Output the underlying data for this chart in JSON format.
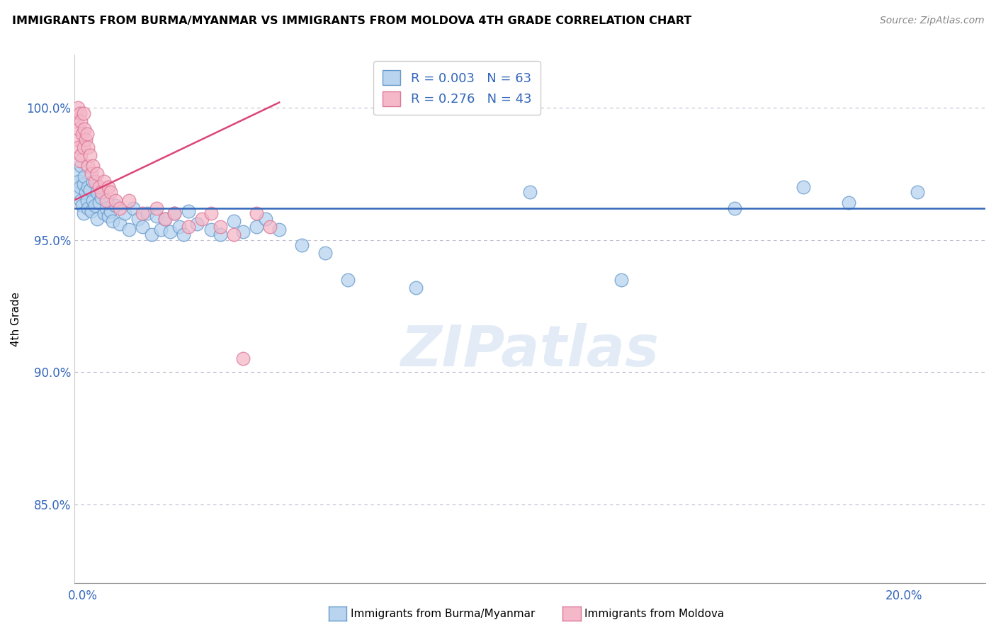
{
  "title": "IMMIGRANTS FROM BURMA/MYANMAR VS IMMIGRANTS FROM MOLDOVA 4TH GRADE CORRELATION CHART",
  "source": "Source: ZipAtlas.com",
  "ylabel": "4th Grade",
  "xlim": [
    0.0,
    20.0
  ],
  "ylim": [
    82.0,
    102.0
  ],
  "yticks": [
    85.0,
    90.0,
    95.0,
    100.0
  ],
  "ytick_labels": [
    "85.0%",
    "90.0%",
    "95.0%",
    "100.0%"
  ],
  "series_burma": {
    "label": "Immigrants from Burma/Myanmar",
    "color": "#b8d4ee",
    "edge_color": "#6699cc",
    "R": 0.003,
    "N": 63,
    "line_color": "#3366bb",
    "line_y": 96.2
  },
  "series_moldova": {
    "label": "Immigrants from Moldova",
    "color": "#f4b8c8",
    "edge_color": "#dd7799",
    "R": 0.276,
    "N": 43,
    "line_color": "#dd4477",
    "line_x0": 0.0,
    "line_y0": 96.5,
    "line_x1": 4.5,
    "line_y1": 100.2
  },
  "watermark": "ZIPatlas",
  "burma_points": [
    [
      0.08,
      97.5
    ],
    [
      0.08,
      96.8
    ],
    [
      0.1,
      97.2
    ],
    [
      0.12,
      97.0
    ],
    [
      0.15,
      96.5
    ],
    [
      0.15,
      97.8
    ],
    [
      0.18,
      96.3
    ],
    [
      0.2,
      97.1
    ],
    [
      0.2,
      96.0
    ],
    [
      0.22,
      97.4
    ],
    [
      0.25,
      96.8
    ],
    [
      0.28,
      96.5
    ],
    [
      0.3,
      97.0
    ],
    [
      0.3,
      96.2
    ],
    [
      0.35,
      96.9
    ],
    [
      0.38,
      96.1
    ],
    [
      0.4,
      97.2
    ],
    [
      0.4,
      96.5
    ],
    [
      0.45,
      96.3
    ],
    [
      0.5,
      96.8
    ],
    [
      0.5,
      95.8
    ],
    [
      0.55,
      96.4
    ],
    [
      0.6,
      96.6
    ],
    [
      0.65,
      96.0
    ],
    [
      0.7,
      96.2
    ],
    [
      0.75,
      95.9
    ],
    [
      0.8,
      96.1
    ],
    [
      0.85,
      95.7
    ],
    [
      0.9,
      96.3
    ],
    [
      1.0,
      95.6
    ],
    [
      1.1,
      96.0
    ],
    [
      1.2,
      95.4
    ],
    [
      1.3,
      96.2
    ],
    [
      1.4,
      95.8
    ],
    [
      1.5,
      95.5
    ],
    [
      1.6,
      96.0
    ],
    [
      1.7,
      95.2
    ],
    [
      1.8,
      95.9
    ],
    [
      1.9,
      95.4
    ],
    [
      2.0,
      95.8
    ],
    [
      2.1,
      95.3
    ],
    [
      2.2,
      96.0
    ],
    [
      2.3,
      95.5
    ],
    [
      2.4,
      95.2
    ],
    [
      2.5,
      96.1
    ],
    [
      2.7,
      95.6
    ],
    [
      3.0,
      95.4
    ],
    [
      3.2,
      95.2
    ],
    [
      3.5,
      95.7
    ],
    [
      3.7,
      95.3
    ],
    [
      4.0,
      95.5
    ],
    [
      4.2,
      95.8
    ],
    [
      4.5,
      95.4
    ],
    [
      5.0,
      94.8
    ],
    [
      5.5,
      94.5
    ],
    [
      6.0,
      93.5
    ],
    [
      7.5,
      93.2
    ],
    [
      10.0,
      96.8
    ],
    [
      12.0,
      93.5
    ],
    [
      14.5,
      96.2
    ],
    [
      16.0,
      97.0
    ],
    [
      17.0,
      96.4
    ],
    [
      18.5,
      96.8
    ]
  ],
  "moldova_points": [
    [
      0.05,
      99.5
    ],
    [
      0.08,
      100.0
    ],
    [
      0.08,
      98.8
    ],
    [
      0.1,
      99.2
    ],
    [
      0.1,
      98.5
    ],
    [
      0.12,
      99.8
    ],
    [
      0.12,
      98.0
    ],
    [
      0.15,
      99.5
    ],
    [
      0.15,
      98.2
    ],
    [
      0.18,
      99.0
    ],
    [
      0.2,
      99.8
    ],
    [
      0.2,
      98.5
    ],
    [
      0.22,
      99.2
    ],
    [
      0.25,
      98.8
    ],
    [
      0.28,
      99.0
    ],
    [
      0.3,
      98.5
    ],
    [
      0.3,
      97.8
    ],
    [
      0.35,
      98.2
    ],
    [
      0.38,
      97.5
    ],
    [
      0.4,
      97.8
    ],
    [
      0.45,
      97.2
    ],
    [
      0.5,
      97.5
    ],
    [
      0.55,
      97.0
    ],
    [
      0.6,
      96.8
    ],
    [
      0.65,
      97.2
    ],
    [
      0.7,
      96.5
    ],
    [
      0.75,
      97.0
    ],
    [
      0.8,
      96.8
    ],
    [
      0.9,
      96.5
    ],
    [
      1.0,
      96.2
    ],
    [
      1.2,
      96.5
    ],
    [
      1.5,
      96.0
    ],
    [
      1.8,
      96.2
    ],
    [
      2.0,
      95.8
    ],
    [
      2.2,
      96.0
    ],
    [
      2.5,
      95.5
    ],
    [
      2.8,
      95.8
    ],
    [
      3.0,
      96.0
    ],
    [
      3.2,
      95.5
    ],
    [
      3.5,
      95.2
    ],
    [
      3.7,
      90.5
    ],
    [
      4.0,
      96.0
    ],
    [
      4.3,
      95.5
    ]
  ]
}
